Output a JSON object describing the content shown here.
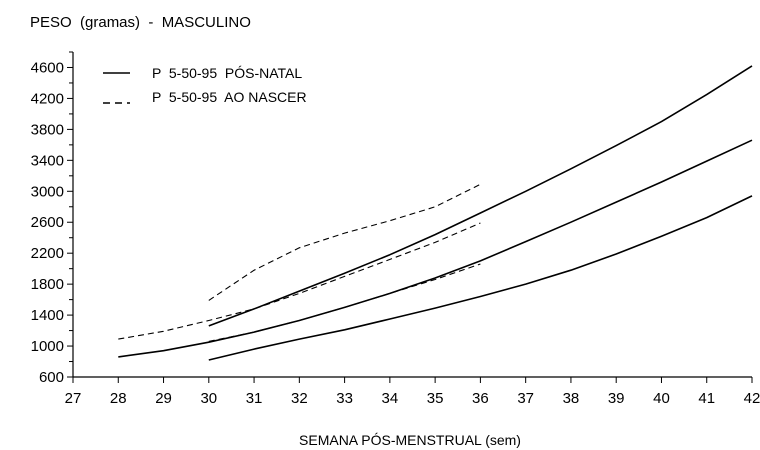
{
  "chart_data": {
    "type": "line",
    "title": "PESO  (gramas)  -  MASCULINO",
    "xlabel": "SEMANA PÓS-MENSTRUAL (sem)",
    "ylabel": "",
    "xlim": [
      27,
      42
    ],
    "ylim": [
      600,
      4800
    ],
    "x_ticks": [
      27,
      28,
      29,
      30,
      31,
      32,
      33,
      34,
      35,
      36,
      37,
      38,
      39,
      40,
      41,
      42
    ],
    "y_ticks": [
      600,
      1000,
      1400,
      1800,
      2200,
      2600,
      3000,
      3400,
      3800,
      4200,
      4600
    ],
    "y_minor_ticks": [
      800,
      1200,
      1600,
      2000,
      2400,
      2800,
      3200,
      3600,
      4000,
      4400,
      4800
    ],
    "grid": false,
    "legend_position": "top-left",
    "legend": [
      {
        "label": "P  5-50-95  PÓS-NATAL",
        "style": "solid"
      },
      {
        "label": "P  5-50-95  AO NASCER",
        "style": "dashed"
      }
    ],
    "series": [
      {
        "group": "pos-natal",
        "style": "solid",
        "percentile": "P5",
        "x": [
          30,
          31,
          32,
          33,
          34,
          35,
          36,
          37,
          38,
          39,
          40,
          41,
          42
        ],
        "y": [
          820,
          960,
          1090,
          1210,
          1350,
          1490,
          1640,
          1800,
          1980,
          2190,
          2420,
          2660,
          2940
        ]
      },
      {
        "group": "pos-natal",
        "style": "solid",
        "percentile": "P50",
        "x": [
          28,
          29,
          30,
          31,
          32,
          33,
          34,
          35,
          36,
          37,
          38,
          39,
          40,
          41,
          42
        ],
        "y": [
          860,
          940,
          1050,
          1180,
          1330,
          1500,
          1680,
          1880,
          2100,
          2350,
          2600,
          2860,
          3120,
          3390,
          3660
        ]
      },
      {
        "group": "pos-natal",
        "style": "solid",
        "percentile": "P95",
        "x": [
          30,
          31,
          32,
          33,
          34,
          35,
          36,
          37,
          38,
          39,
          40,
          41,
          42
        ],
        "y": [
          1260,
          1480,
          1710,
          1940,
          2180,
          2440,
          2720,
          3000,
          3290,
          3590,
          3900,
          4250,
          4620
        ]
      },
      {
        "group": "ao-nascer",
        "style": "dashed",
        "percentile": "P5",
        "x": [
          30,
          31,
          32,
          33,
          34,
          35,
          36
        ],
        "y": [
          1060,
          1180,
          1330,
          1500,
          1680,
          1860,
          2060
        ]
      },
      {
        "group": "ao-nascer",
        "style": "dashed",
        "percentile": "P50",
        "x": [
          28,
          29,
          30,
          31,
          32,
          33,
          34,
          35,
          36
        ],
        "y": [
          1090,
          1190,
          1330,
          1480,
          1680,
          1900,
          2120,
          2340,
          2590
        ]
      },
      {
        "group": "ao-nascer",
        "style": "dashed",
        "percentile": "P95",
        "x": [
          30,
          31,
          32,
          33,
          34,
          35,
          36
        ],
        "y": [
          1590,
          1980,
          2270,
          2460,
          2620,
          2800,
          3090
        ]
      }
    ]
  }
}
